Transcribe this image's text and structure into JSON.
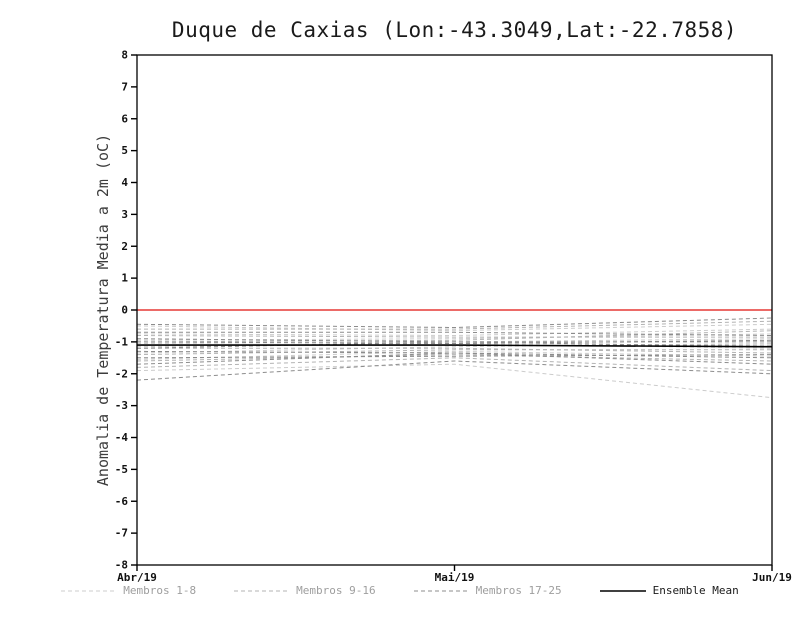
{
  "chart_data": {
    "type": "line",
    "title": "Duque de Caxias (Lon:-43.3049,Lat:-22.7858)",
    "ylabel": "Anomalia de Temperatura Media a 2m (oC)",
    "xlabel": "",
    "x_labels": [
      "Abr/19",
      "Mai/19",
      "Jun/19"
    ],
    "ylim": [
      -8,
      8
    ],
    "y_ticks": [
      8,
      7,
      6,
      5,
      4,
      3,
      2,
      1,
      0,
      -1,
      -2,
      -3,
      -4,
      -5,
      -6,
      -7,
      -8
    ],
    "grid": false,
    "legend_position": "bottom",
    "groups": [
      {
        "name": "Membros 1-8",
        "color": "#cccccc",
        "label_color": "#9e9e9e",
        "style": "dashed",
        "members": [
          [
            -0.5,
            -0.65,
            -0.45
          ],
          [
            -0.75,
            -0.8,
            -0.6
          ],
          [
            -0.95,
            -0.9,
            -0.75
          ],
          [
            -1.05,
            -1.0,
            -0.9
          ],
          [
            -1.15,
            -1.05,
            -1.2
          ],
          [
            -1.35,
            -1.15,
            -1.05
          ],
          [
            -1.55,
            -1.3,
            -1.45
          ],
          [
            -1.9,
            -1.7,
            -2.75
          ]
        ]
      },
      {
        "name": "Membros 9-16",
        "color": "#b3b3b3",
        "label_color": "#9e9e9e",
        "style": "dashed",
        "members": [
          [
            -0.6,
            -0.6,
            -0.35
          ],
          [
            -0.8,
            -0.85,
            -0.85
          ],
          [
            -1.0,
            -0.95,
            -0.65
          ],
          [
            -1.1,
            -1.1,
            -1.1
          ],
          [
            -1.2,
            -1.2,
            -1.35
          ],
          [
            -1.4,
            -1.25,
            -1.25
          ],
          [
            -1.6,
            -1.4,
            -1.6
          ],
          [
            -1.8,
            -1.5,
            -1.9
          ]
        ]
      },
      {
        "name": "Membros 17-25",
        "color": "#8c8c8c",
        "label_color": "#9e9e9e",
        "style": "dashed",
        "members": [
          [
            -0.45,
            -0.55,
            -0.25
          ],
          [
            -0.7,
            -0.7,
            -0.8
          ],
          [
            -0.9,
            -1.0,
            -1.0
          ],
          [
            -1.0,
            -1.05,
            -0.95
          ],
          [
            -1.2,
            -1.0,
            -1.15
          ],
          [
            -1.3,
            -1.35,
            -1.5
          ],
          [
            -1.5,
            -1.45,
            -1.4
          ],
          [
            -1.7,
            -1.35,
            -1.7
          ],
          [
            -2.2,
            -1.6,
            -2.0
          ]
        ]
      }
    ],
    "ensemble_mean": {
      "name": "Ensemble Mean",
      "color": "#000000",
      "label_color": "#1a1a1a",
      "style": "solid",
      "values": [
        -1.1,
        -1.1,
        -1.15
      ]
    },
    "zero_line": {
      "color": "#e53935",
      "value": 0
    }
  }
}
